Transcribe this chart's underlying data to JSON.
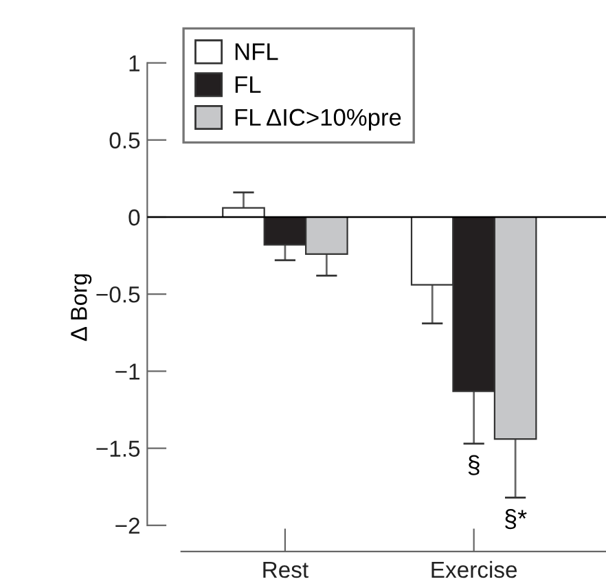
{
  "chart_data": {
    "type": "bar",
    "ylabel": "Δ Borg",
    "categories": [
      "Rest",
      "Exercise"
    ],
    "series": [
      {
        "name": "NFL",
        "color": "#ffffff",
        "values": [
          0.06,
          -0.44
        ],
        "errors": [
          [
            0.06,
            0.16
          ],
          [
            -0.69,
            -0.44
          ]
        ]
      },
      {
        "name": "FL",
        "color": "#231f20",
        "values": [
          -0.18,
          -1.13
        ],
        "errors": [
          [
            -0.28,
            -0.18
          ],
          [
            -1.47,
            -1.13
          ]
        ],
        "value_labels": [
          null,
          "§"
        ]
      },
      {
        "name": "FL ΔIC>10%pre",
        "color": "#c6c7c9",
        "values": [
          -0.24,
          -1.44
        ],
        "errors": [
          [
            -0.38,
            -0.24
          ],
          [
            -1.82,
            -1.44
          ]
        ],
        "value_labels": [
          null,
          "§*"
        ]
      }
    ],
    "ylim": [
      -2.17,
      1
    ],
    "yticks": [
      1,
      0.5,
      0,
      -0.5,
      -1,
      -1.5,
      -2
    ],
    "ref_lines": [
      {
        "axis": "y",
        "value": 0,
        "color": "#000000"
      }
    ],
    "legend": "top",
    "grid": false
  }
}
